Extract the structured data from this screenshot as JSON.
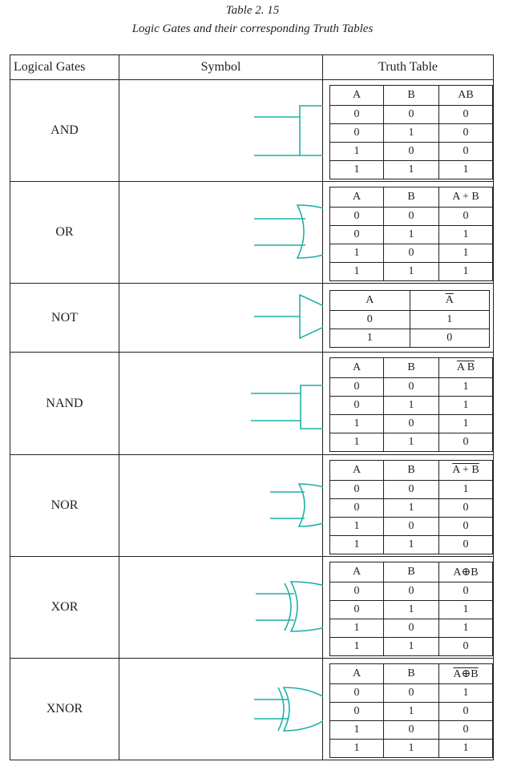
{
  "caption": {
    "line1": "Table 2. 15",
    "line2": "Logic Gates and their corresponding Truth Tables"
  },
  "headers": {
    "gates": "Logical Gates",
    "symbol": "Symbol",
    "truth": "Truth Table"
  },
  "colors": {
    "symbol_stroke": "#1fb0a8",
    "text": "#231f20"
  },
  "gates": [
    {
      "name": "AND",
      "symbol_icon": "and-gate-icon",
      "cols": [
        "A",
        "B",
        "AB"
      ],
      "overline": false,
      "rows": [
        [
          "0",
          "0",
          "0"
        ],
        [
          "0",
          "1",
          "0"
        ],
        [
          "1",
          "0",
          "0"
        ],
        [
          "1",
          "1",
          "1"
        ]
      ]
    },
    {
      "name": "OR",
      "symbol_icon": "or-gate-icon",
      "cols": [
        "A",
        "B",
        "A + B"
      ],
      "overline": false,
      "rows": [
        [
          "0",
          "0",
          "0"
        ],
        [
          "0",
          "1",
          "1"
        ],
        [
          "1",
          "0",
          "1"
        ],
        [
          "1",
          "1",
          "1"
        ]
      ]
    },
    {
      "name": "NOT",
      "symbol_icon": "not-gate-icon",
      "cols": [
        "A",
        "A"
      ],
      "overline": true,
      "rows": [
        [
          "0",
          "1"
        ],
        [
          "1",
          "0"
        ]
      ]
    },
    {
      "name": "NAND",
      "symbol_icon": "nand-gate-icon",
      "cols": [
        "A",
        "B",
        "A B"
      ],
      "overline": true,
      "rows": [
        [
          "0",
          "0",
          "1"
        ],
        [
          "0",
          "1",
          "1"
        ],
        [
          "1",
          "0",
          "1"
        ],
        [
          "1",
          "1",
          "0"
        ]
      ]
    },
    {
      "name": "NOR",
      "symbol_icon": "nor-gate-icon",
      "cols": [
        "A",
        "B",
        "A + B"
      ],
      "overline": true,
      "rows": [
        [
          "0",
          "0",
          "1"
        ],
        [
          "0",
          "1",
          "0"
        ],
        [
          "1",
          "0",
          "0"
        ],
        [
          "1",
          "1",
          "0"
        ]
      ]
    },
    {
      "name": "XOR",
      "symbol_icon": "xor-gate-icon",
      "cols": [
        "A",
        "B",
        "A⊕B"
      ],
      "overline": false,
      "rows": [
        [
          "0",
          "0",
          "0"
        ],
        [
          "0",
          "1",
          "1"
        ],
        [
          "1",
          "0",
          "1"
        ],
        [
          "1",
          "1",
          "0"
        ]
      ]
    },
    {
      "name": "XNOR",
      "symbol_icon": "xnor-gate-icon",
      "cols": [
        "A",
        "B",
        "A⊕B"
      ],
      "overline": true,
      "rows": [
        [
          "0",
          "0",
          "1"
        ],
        [
          "0",
          "1",
          "0"
        ],
        [
          "1",
          "0",
          "0"
        ],
        [
          "1",
          "1",
          "1"
        ]
      ]
    }
  ]
}
